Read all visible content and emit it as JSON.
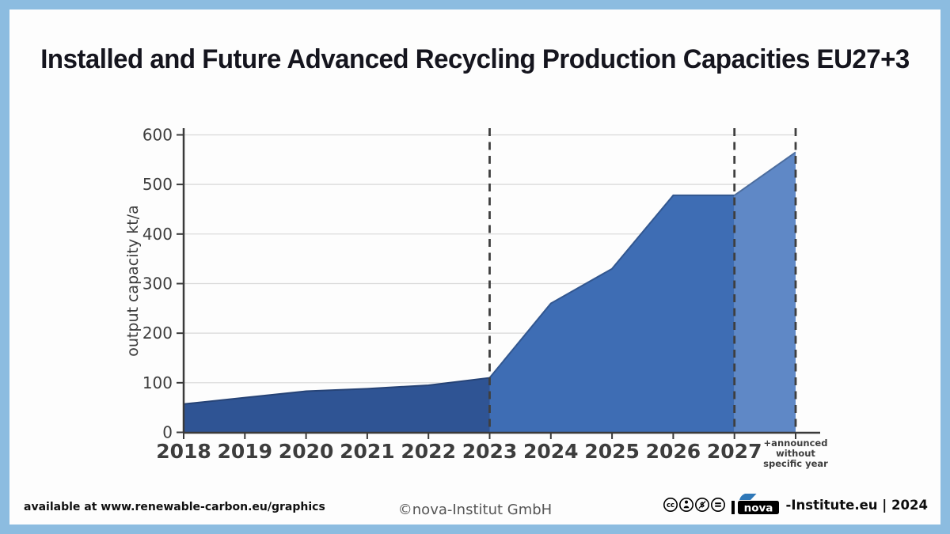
{
  "title": "Installed and Future Advanced Recycling Production Capacities EU27+3",
  "chart_data": {
    "type": "area",
    "title": "Installed and Future Advanced Recycling Production Capacities EU27+3",
    "ylabel": "output capacity kt/a",
    "xlabel": "",
    "categories": [
      "2018",
      "2019",
      "2020",
      "2021",
      "2022",
      "2023",
      "2024",
      "2025",
      "2026",
      "2027",
      "+announced without specific year"
    ],
    "announced_label_lines": [
      "+announced",
      "without",
      "specific year"
    ],
    "values": [
      57,
      70,
      83,
      88,
      95,
      110,
      260,
      330,
      478,
      478,
      565
    ],
    "unit": "kt/a",
    "yticks": [
      0,
      100,
      200,
      300,
      400,
      500,
      600
    ],
    "ylim": [
      0,
      600
    ],
    "grid": "horizontal",
    "segments": [
      {
        "name": "2018-2023",
        "from": "2018",
        "to": "2023",
        "color": "#2f5494"
      },
      {
        "name": "2023-2027",
        "from": "2023",
        "to": "2027",
        "color": "#3e6db4"
      },
      {
        "name": "2027-announced",
        "from": "2027",
        "to": "+announced without specific year",
        "color": "#5f88c6"
      }
    ],
    "dashed_markers": [
      "2023",
      "2027",
      "+announced without specific year"
    ],
    "colors": {
      "axis": "#3a3a3a",
      "gridline": "#d8d8d8",
      "dashed_line": "#3f3f3f",
      "tick_label": "#3d3d3d"
    }
  },
  "frame": {
    "border_color": "#8cbce0",
    "background": "#fdfdfd"
  },
  "footer": {
    "left_text": "available at www.renewable-carbon.eu/graphics",
    "center_text": "©nova-Institut GmbH",
    "cc_icons": [
      "cc",
      "by",
      "nc",
      "nd"
    ],
    "logo_word": "nova",
    "logo_suffix": "-Institute.eu | 2024",
    "logo_colors": {
      "box": "#000000",
      "sail": "#2f78b8",
      "word": "#ffffff"
    }
  }
}
